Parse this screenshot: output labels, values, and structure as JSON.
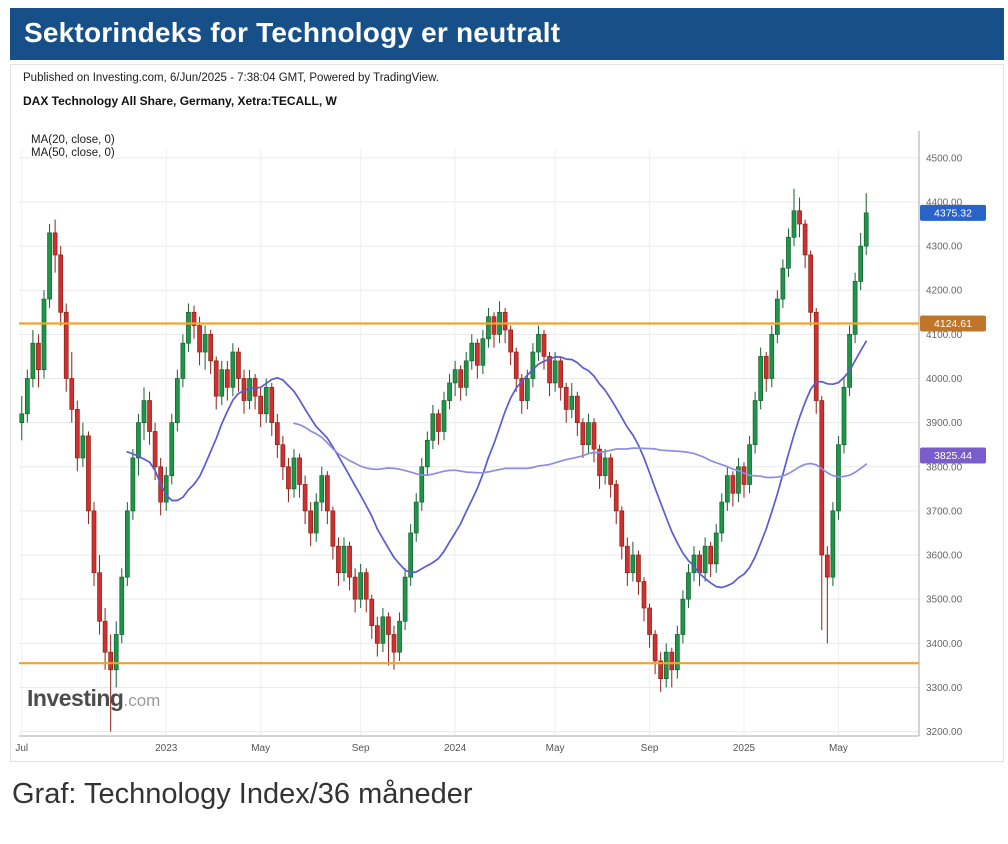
{
  "header": {
    "title": "Sektorindeks for Technology er neutralt",
    "bg_color": "#175089"
  },
  "caption": "Graf: Technology Index/36 måneder",
  "chart": {
    "published_line": "Published on Investing.com, 6/Jun/2025 - 7:38:04 GMT, Powered by TradingView.",
    "instrument_title": "DAX Technology All Share, Germany, Xetra:TECALL, W",
    "ma_label_20": "MA(20, close, 0)",
    "ma_label_50": "MA(50, close, 0)",
    "watermark_bold": "Investing",
    "watermark_light": ".com"
  },
  "chart_data": {
    "type": "candlestick",
    "title": "DAX Technology All Share, Germany, Xetra:TECALL",
    "timeframe": "W",
    "span": "36 months (Jul 2022 - Jun 2025)",
    "last_price": 4375.32,
    "ylim": [
      3190,
      4520
    ],
    "y_ticks": [
      4500,
      4400,
      4300,
      4200,
      4100,
      4000,
      3900,
      3800,
      3700,
      3600,
      3500,
      3400,
      3300,
      3200
    ],
    "x_ticks": [
      {
        "label": "Jul",
        "i": 0
      },
      {
        "label": "2023",
        "i": 26
      },
      {
        "label": "May",
        "i": 43
      },
      {
        "label": "Sep",
        "i": 61
      },
      {
        "label": "2024",
        "i": 78
      },
      {
        "label": "May",
        "i": 96
      },
      {
        "label": "Sep",
        "i": 113
      },
      {
        "label": "2025",
        "i": 130
      },
      {
        "label": "May",
        "i": 147
      }
    ],
    "colors": {
      "up": "#1e9648",
      "down": "#cf3030",
      "up_dark": "#14602e",
      "down_dark": "#8e1f15"
    },
    "hlines": [
      {
        "name": "resistance-line",
        "value": 4124.61,
        "color": "#f2a32e"
      },
      {
        "name": "support-line",
        "value": 3355,
        "color": "#f2a32e"
      }
    ],
    "mas": [
      {
        "name": "ma20",
        "period": 20,
        "color": "#5a5ad4"
      },
      {
        "name": "ma50",
        "period": 50,
        "color": "#8d8de2"
      }
    ],
    "badges": [
      {
        "name": "last-price-badge",
        "label": "4375.32",
        "value": 4375.32,
        "color": "#2a63c8"
      },
      {
        "name": "resistance-badge",
        "label": "4124.61",
        "value": 4124.61,
        "color": "#c0762a"
      },
      {
        "name": "ma50-badge",
        "label": "3825.44",
        "value": 3825.44,
        "color": "#7a5ccc"
      }
    ],
    "candles": [
      [
        3900,
        3960,
        3860,
        3920
      ],
      [
        3920,
        4020,
        3900,
        4000
      ],
      [
        4000,
        4110,
        3980,
        4080
      ],
      [
        4080,
        4100,
        3980,
        4020
      ],
      [
        4020,
        4200,
        4000,
        4180
      ],
      [
        4180,
        4350,
        4160,
        4330
      ],
      [
        4330,
        4360,
        4240,
        4280
      ],
      [
        4280,
        4300,
        4120,
        4150
      ],
      [
        4150,
        4170,
        3970,
        4000
      ],
      [
        4000,
        4060,
        3900,
        3930
      ],
      [
        3930,
        3950,
        3790,
        3820
      ],
      [
        3820,
        3900,
        3800,
        3870
      ],
      [
        3870,
        3880,
        3670,
        3700
      ],
      [
        3700,
        3720,
        3530,
        3560
      ],
      [
        3560,
        3600,
        3420,
        3450
      ],
      [
        3450,
        3480,
        3340,
        3380
      ],
      [
        3380,
        3420,
        3200,
        3340
      ],
      [
        3340,
        3450,
        3300,
        3420
      ],
      [
        3420,
        3570,
        3400,
        3550
      ],
      [
        3550,
        3720,
        3530,
        3700
      ],
      [
        3700,
        3840,
        3680,
        3820
      ],
      [
        3820,
        3920,
        3780,
        3900
      ],
      [
        3900,
        3980,
        3860,
        3950
      ],
      [
        3950,
        3970,
        3850,
        3880
      ],
      [
        3880,
        3900,
        3770,
        3800
      ],
      [
        3800,
        3820,
        3690,
        3720
      ],
      [
        3720,
        3800,
        3700,
        3780
      ],
      [
        3780,
        3920,
        3760,
        3900
      ],
      [
        3900,
        4020,
        3880,
        4000
      ],
      [
        4000,
        4100,
        3980,
        4080
      ],
      [
        4080,
        4170,
        4060,
        4150
      ],
      [
        4150,
        4165,
        4090,
        4120
      ],
      [
        4120,
        4140,
        4030,
        4060
      ],
      [
        4060,
        4120,
        4020,
        4100
      ],
      [
        4100,
        4110,
        4010,
        4040
      ],
      [
        4040,
        4050,
        3930,
        3960
      ],
      [
        3960,
        4040,
        3940,
        4020
      ],
      [
        4020,
        4040,
        3950,
        3980
      ],
      [
        3980,
        4080,
        3960,
        4060
      ],
      [
        4060,
        4070,
        3970,
        4000
      ],
      [
        4000,
        4020,
        3920,
        3950
      ],
      [
        3950,
        4020,
        3930,
        4000
      ],
      [
        4000,
        4010,
        3930,
        3960
      ],
      [
        3960,
        3980,
        3890,
        3920
      ],
      [
        3920,
        4000,
        3900,
        3980
      ],
      [
        3980,
        3990,
        3870,
        3900
      ],
      [
        3900,
        3920,
        3820,
        3850
      ],
      [
        3850,
        3870,
        3770,
        3800
      ],
      [
        3800,
        3820,
        3720,
        3750
      ],
      [
        3750,
        3840,
        3730,
        3820
      ],
      [
        3820,
        3830,
        3730,
        3760
      ],
      [
        3760,
        3780,
        3670,
        3700
      ],
      [
        3700,
        3720,
        3620,
        3650
      ],
      [
        3650,
        3740,
        3630,
        3720
      ],
      [
        3720,
        3800,
        3700,
        3780
      ],
      [
        3780,
        3790,
        3670,
        3700
      ],
      [
        3700,
        3710,
        3590,
        3620
      ],
      [
        3620,
        3640,
        3530,
        3560
      ],
      [
        3560,
        3640,
        3540,
        3620
      ],
      [
        3620,
        3630,
        3520,
        3550
      ],
      [
        3550,
        3570,
        3470,
        3500
      ],
      [
        3500,
        3580,
        3480,
        3560
      ],
      [
        3560,
        3570,
        3470,
        3500
      ],
      [
        3500,
        3510,
        3410,
        3440
      ],
      [
        3440,
        3460,
        3370,
        3400
      ],
      [
        3400,
        3480,
        3380,
        3460
      ],
      [
        3460,
        3470,
        3350,
        3420
      ],
      [
        3420,
        3440,
        3340,
        3380
      ],
      [
        3380,
        3470,
        3360,
        3450
      ],
      [
        3450,
        3570,
        3430,
        3550
      ],
      [
        3550,
        3670,
        3530,
        3650
      ],
      [
        3650,
        3740,
        3630,
        3720
      ],
      [
        3720,
        3820,
        3700,
        3800
      ],
      [
        3800,
        3880,
        3780,
        3860
      ],
      [
        3860,
        3940,
        3840,
        3920
      ],
      [
        3920,
        3930,
        3850,
        3880
      ],
      [
        3880,
        3970,
        3860,
        3950
      ],
      [
        3950,
        4010,
        3930,
        3990
      ],
      [
        3990,
        4040,
        3960,
        4020
      ],
      [
        4020,
        4030,
        3950,
        3980
      ],
      [
        3980,
        4060,
        3960,
        4040
      ],
      [
        4040,
        4100,
        4020,
        4080
      ],
      [
        4080,
        4090,
        4000,
        4030
      ],
      [
        4030,
        4110,
        4010,
        4090
      ],
      [
        4090,
        4160,
        4070,
        4140
      ],
      [
        4140,
        4150,
        4070,
        4100
      ],
      [
        4100,
        4175,
        4080,
        4150
      ],
      [
        4150,
        4160,
        4080,
        4110
      ],
      [
        4110,
        4120,
        4030,
        4060
      ],
      [
        4060,
        4070,
        3970,
        4000
      ],
      [
        4000,
        4010,
        3920,
        3950
      ],
      [
        3950,
        4020,
        3930,
        4000
      ],
      [
        4000,
        4080,
        3980,
        4060
      ],
      [
        4060,
        4120,
        4040,
        4100
      ],
      [
        4100,
        4110,
        4020,
        4050
      ],
      [
        4050,
        4060,
        3960,
        3990
      ],
      [
        3990,
        4060,
        3970,
        4040
      ],
      [
        4040,
        4050,
        3950,
        3980
      ],
      [
        3980,
        3990,
        3900,
        3930
      ],
      [
        3930,
        3990,
        3910,
        3960
      ],
      [
        3960,
        3970,
        3870,
        3900
      ],
      [
        3900,
        3910,
        3820,
        3850
      ],
      [
        3850,
        3920,
        3830,
        3900
      ],
      [
        3900,
        3910,
        3810,
        3840
      ],
      [
        3840,
        3850,
        3750,
        3780
      ],
      [
        3780,
        3840,
        3760,
        3820
      ],
      [
        3820,
        3830,
        3730,
        3760
      ],
      [
        3760,
        3770,
        3670,
        3700
      ],
      [
        3700,
        3710,
        3590,
        3620
      ],
      [
        3620,
        3640,
        3530,
        3560
      ],
      [
        3560,
        3630,
        3540,
        3600
      ],
      [
        3600,
        3610,
        3510,
        3540
      ],
      [
        3540,
        3550,
        3450,
        3480
      ],
      [
        3480,
        3490,
        3390,
        3420
      ],
      [
        3420,
        3430,
        3330,
        3360
      ],
      [
        3360,
        3380,
        3290,
        3320
      ],
      [
        3320,
        3400,
        3300,
        3380
      ],
      [
        3380,
        3390,
        3300,
        3340
      ],
      [
        3340,
        3440,
        3320,
        3420
      ],
      [
        3420,
        3520,
        3400,
        3500
      ],
      [
        3500,
        3580,
        3480,
        3560
      ],
      [
        3560,
        3620,
        3540,
        3600
      ],
      [
        3600,
        3610,
        3530,
        3560
      ],
      [
        3560,
        3640,
        3540,
        3620
      ],
      [
        3620,
        3630,
        3550,
        3580
      ],
      [
        3580,
        3670,
        3560,
        3650
      ],
      [
        3650,
        3740,
        3630,
        3720
      ],
      [
        3720,
        3800,
        3700,
        3780
      ],
      [
        3780,
        3790,
        3710,
        3740
      ],
      [
        3740,
        3820,
        3720,
        3800
      ],
      [
        3800,
        3810,
        3730,
        3760
      ],
      [
        3760,
        3870,
        3740,
        3850
      ],
      [
        3850,
        3970,
        3830,
        3950
      ],
      [
        3950,
        4070,
        3930,
        4050
      ],
      [
        4050,
        4060,
        3970,
        4000
      ],
      [
        4000,
        4120,
        3980,
        4100
      ],
      [
        4100,
        4200,
        4080,
        4180
      ],
      [
        4180,
        4270,
        4160,
        4250
      ],
      [
        4250,
        4340,
        4230,
        4320
      ],
      [
        4320,
        4430,
        4300,
        4380
      ],
      [
        4380,
        4410,
        4320,
        4350
      ],
      [
        4350,
        4360,
        4250,
        4280
      ],
      [
        4280,
        4290,
        4120,
        4150
      ],
      [
        4150,
        4160,
        3920,
        3950
      ],
      [
        3950,
        3960,
        3430,
        3600
      ],
      [
        3600,
        3620,
        3400,
        3550
      ],
      [
        3550,
        3720,
        3530,
        3700
      ],
      [
        3700,
        3870,
        3680,
        3850
      ],
      [
        3850,
        4000,
        3830,
        3980
      ],
      [
        3980,
        4120,
        3960,
        4100
      ],
      [
        4100,
        4240,
        4080,
        4220
      ],
      [
        4220,
        4330,
        4200,
        4300
      ],
      [
        4300,
        4420,
        4280,
        4375.32
      ]
    ]
  }
}
